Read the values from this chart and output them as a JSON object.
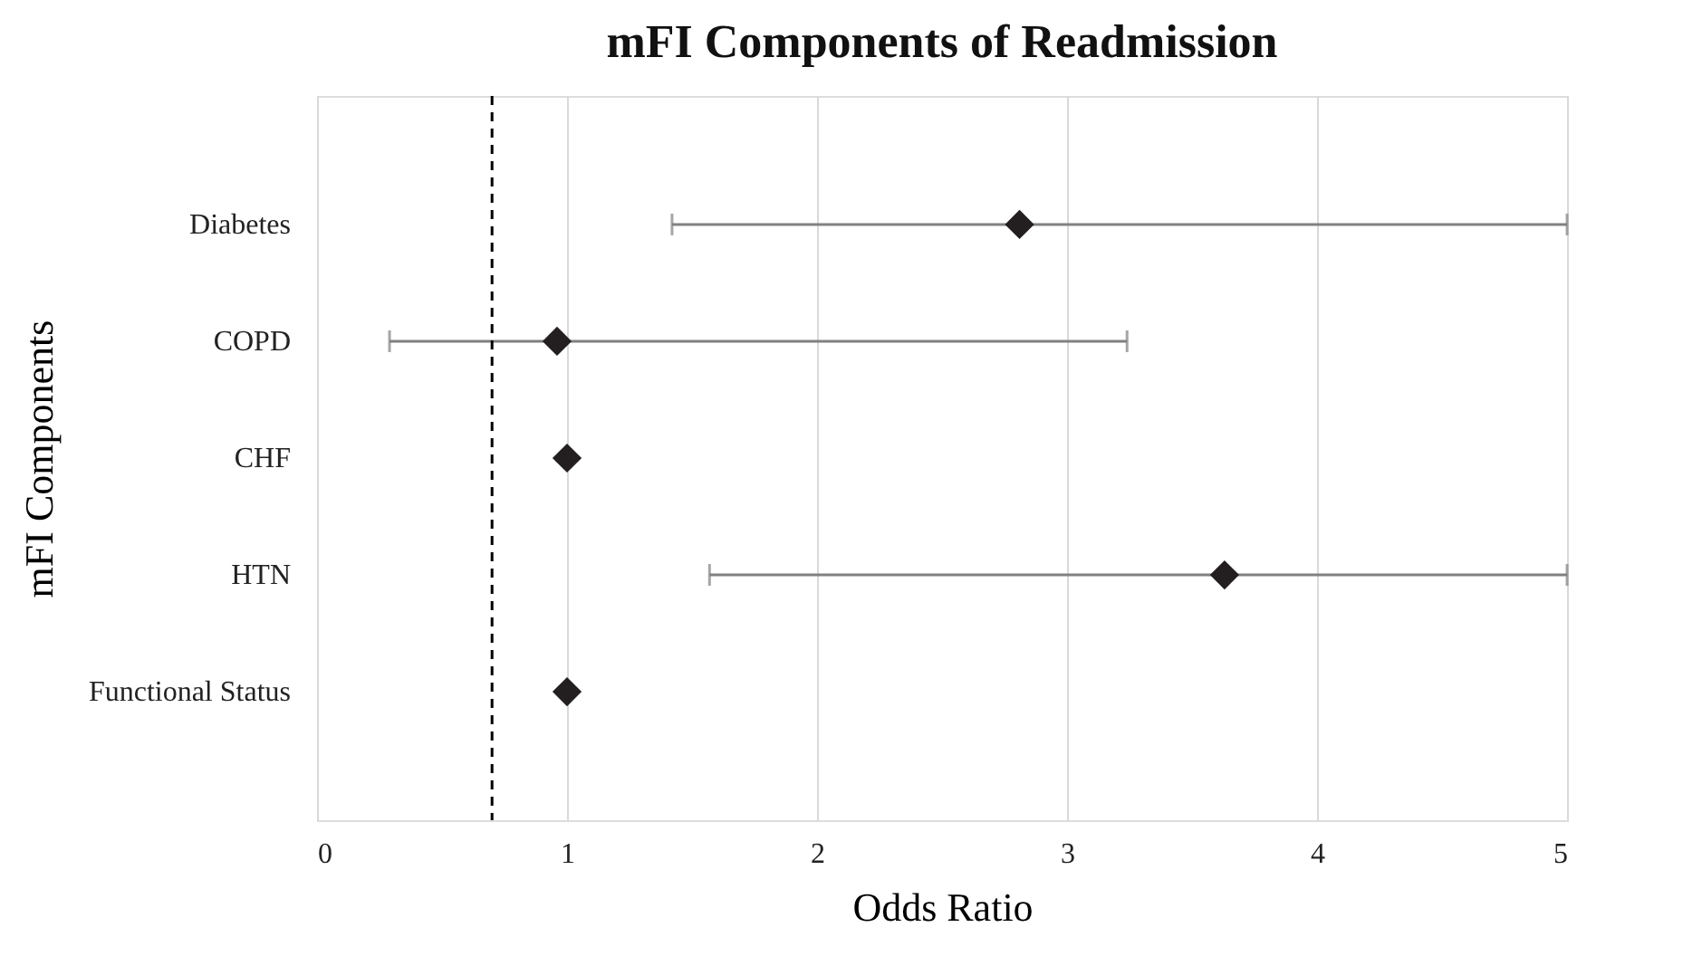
{
  "chart_data": {
    "type": "scatter",
    "title": "mFI Components of Readmission",
    "xlabel": "Odds Ratio",
    "ylabel": "mFI Components",
    "orientation": "horizontal",
    "categories": [
      "Diabetes",
      "COPD",
      "CHF",
      "HTN",
      "Functional Status"
    ],
    "values": [
      2.81,
      0.96,
      1.0,
      3.63,
      1.0
    ],
    "errors": [
      [
        1.42,
        5
      ],
      [
        0.29,
        3.24
      ],
      null,
      [
        1.57,
        5
      ],
      null
    ],
    "color": "#231f20",
    "marker": "diamond",
    "xlim": [
      0,
      5
    ],
    "xticks": [
      0,
      1,
      2,
      3,
      4,
      5
    ],
    "grid": "x",
    "ref_lines": [
      {
        "axis": "x",
        "value": 0.7,
        "color": "#000000",
        "line_style": "dashed"
      }
    ]
  }
}
